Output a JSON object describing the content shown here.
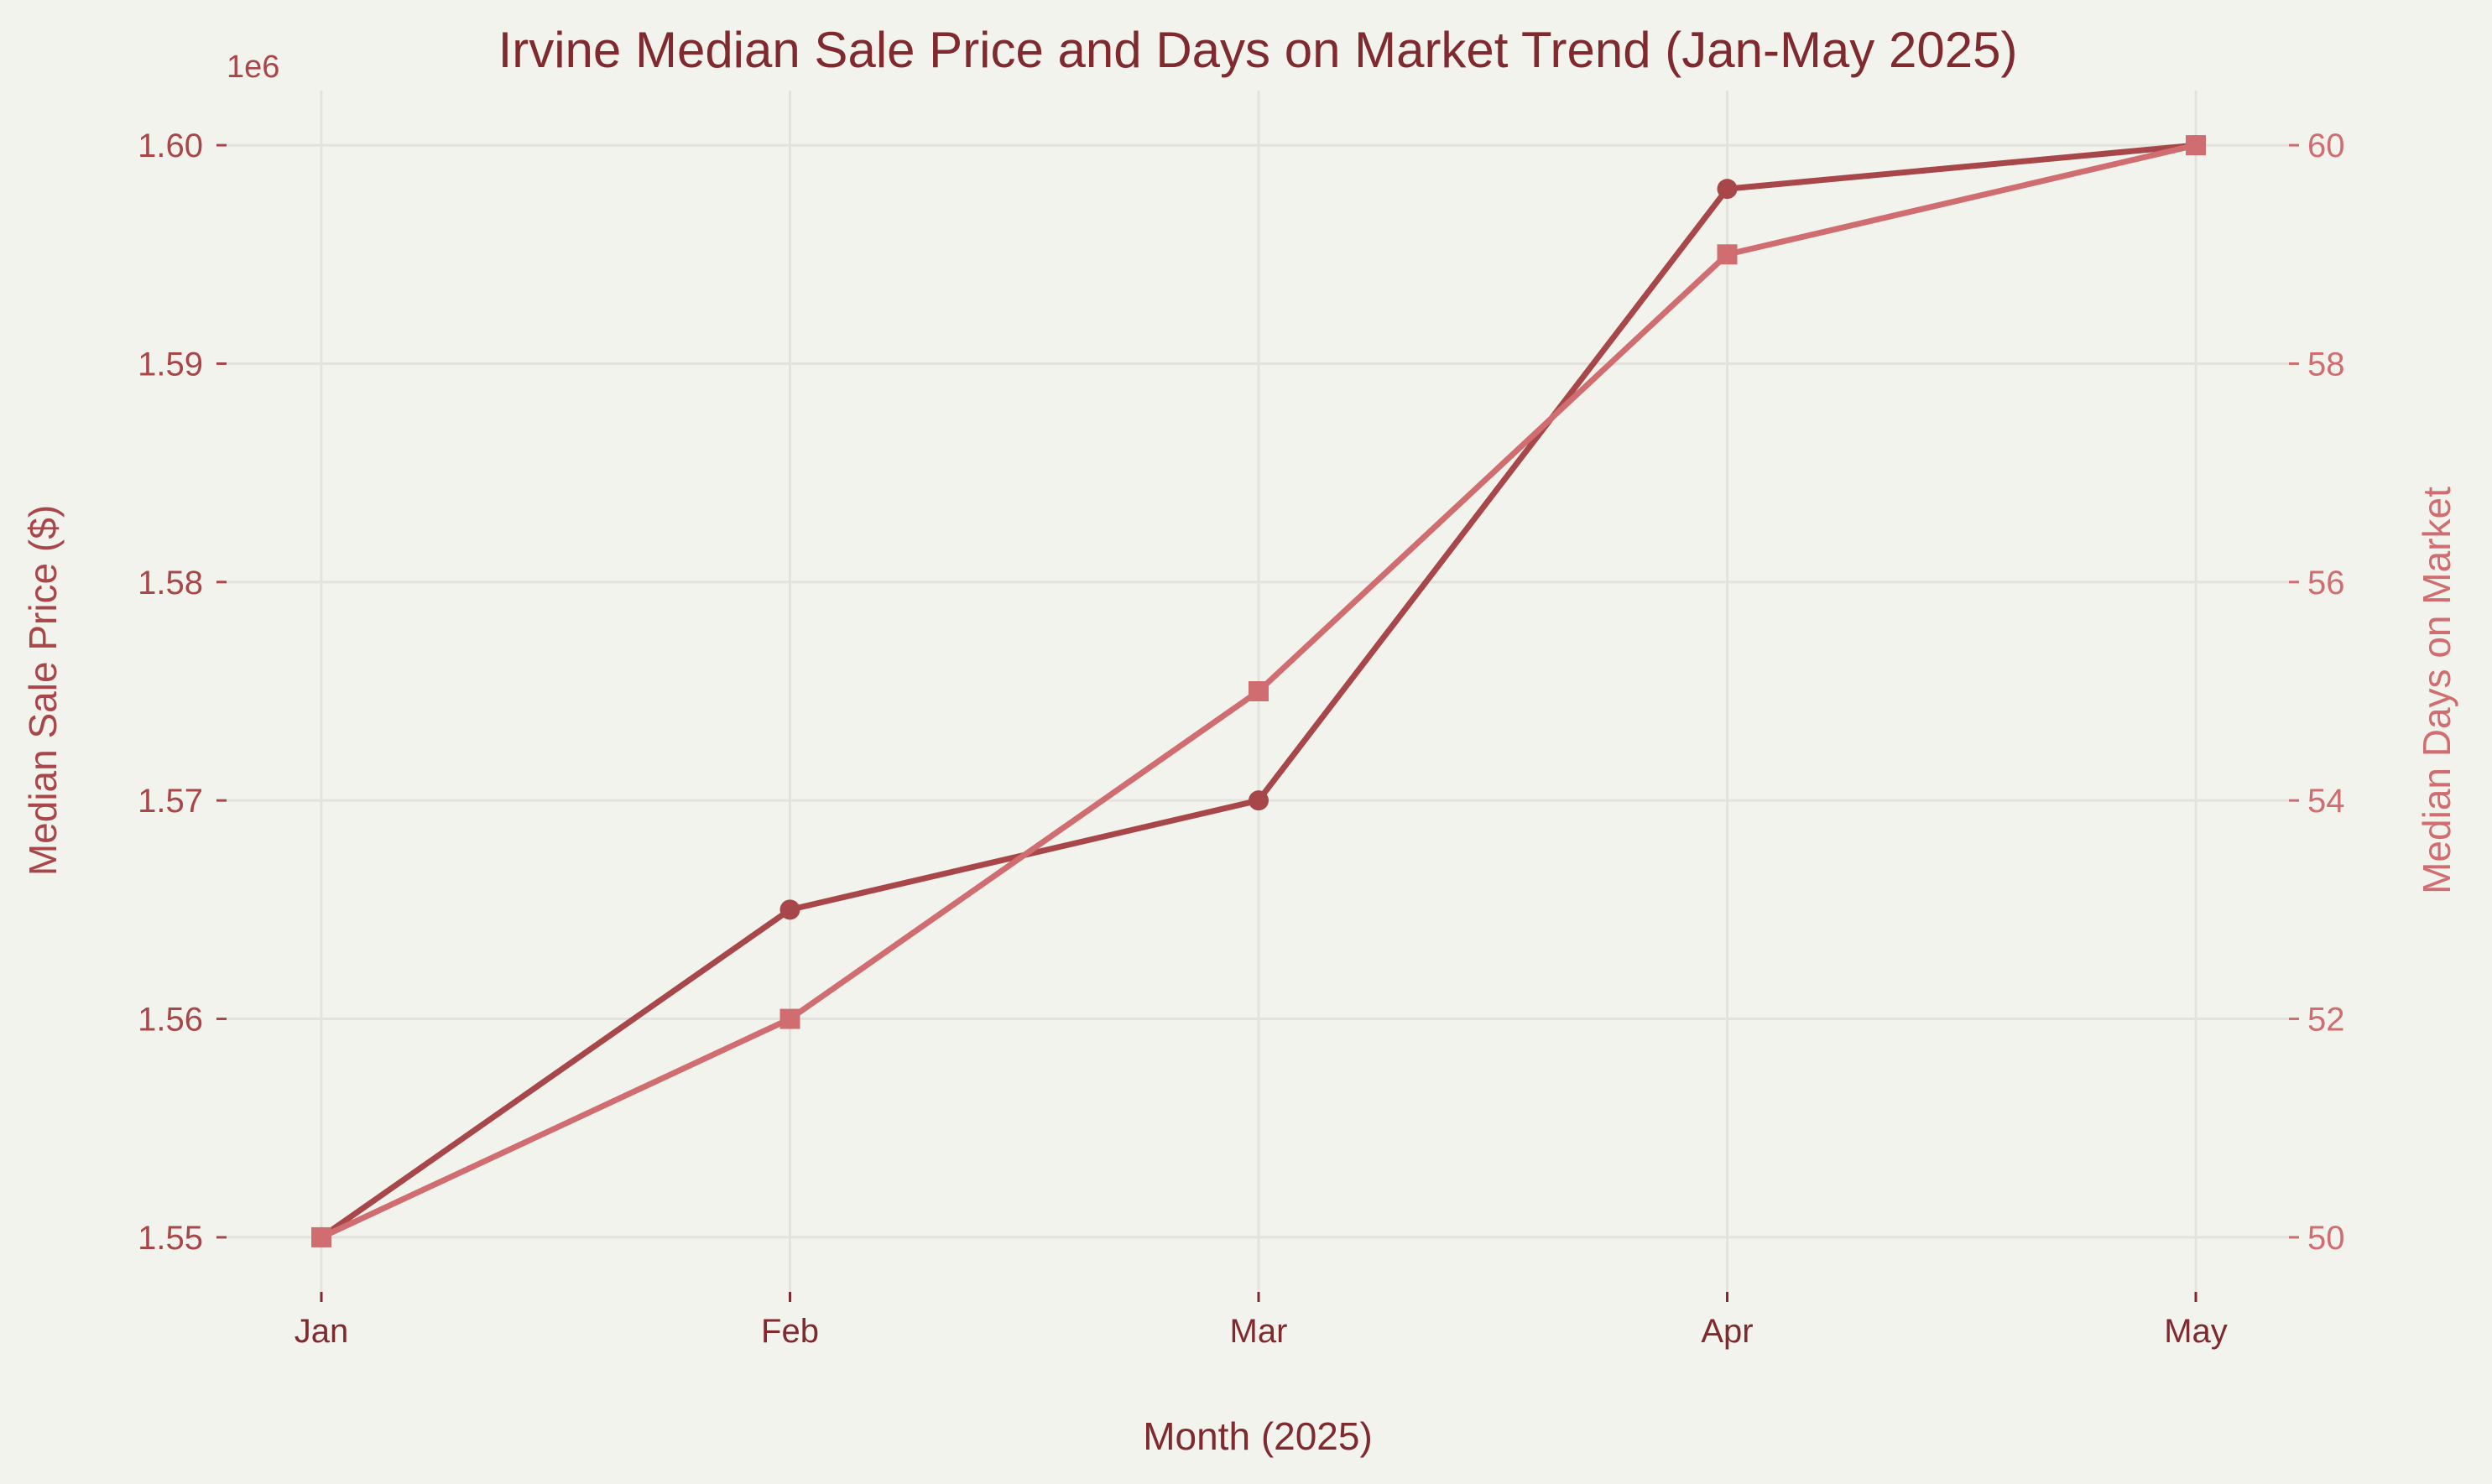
{
  "chart_data": {
    "type": "line",
    "title": "Irvine Median Sale Price and Days on Market Trend (Jan-May 2025)",
    "xlabel": "Month (2025)",
    "ylabel_left": "Median Sale Price ($)",
    "ylabel_right": "Median Days on Market",
    "left_axis_offset_label": "1e6",
    "categories": [
      "Jan",
      "Feb",
      "Mar",
      "Apr",
      "May"
    ],
    "grid": true,
    "series": [
      {
        "name": "Median Sale Price ($)",
        "axis": "left",
        "marker": "circle",
        "color": "#a8474a",
        "values": [
          1550000,
          1565000,
          1570000,
          1598000,
          1600000
        ]
      },
      {
        "name": "Median Days on Market",
        "axis": "right",
        "marker": "square",
        "color": "#d06d70",
        "values": [
          50,
          52,
          55,
          59,
          60
        ]
      }
    ],
    "y_left": {
      "lim": [
        1547500,
        1602500
      ],
      "ticks": [
        1550000,
        1560000,
        1570000,
        1580000,
        1590000,
        1600000
      ],
      "tick_labels": [
        "1.55",
        "1.56",
        "1.57",
        "1.58",
        "1.59",
        "1.60"
      ]
    },
    "y_right": {
      "lim": [
        49.5,
        60.5
      ],
      "ticks": [
        50,
        52,
        54,
        56,
        58,
        60
      ],
      "tick_labels": [
        "50",
        "52",
        "54",
        "56",
        "58",
        "60"
      ]
    },
    "colors": {
      "background": "#f3f3ee",
      "grid": "#e3e2dd",
      "title": "#7f2a2e",
      "left_axis": "#a8474a",
      "right_axis": "#d06d70",
      "x_axis_text": "#7f2a2e"
    }
  }
}
